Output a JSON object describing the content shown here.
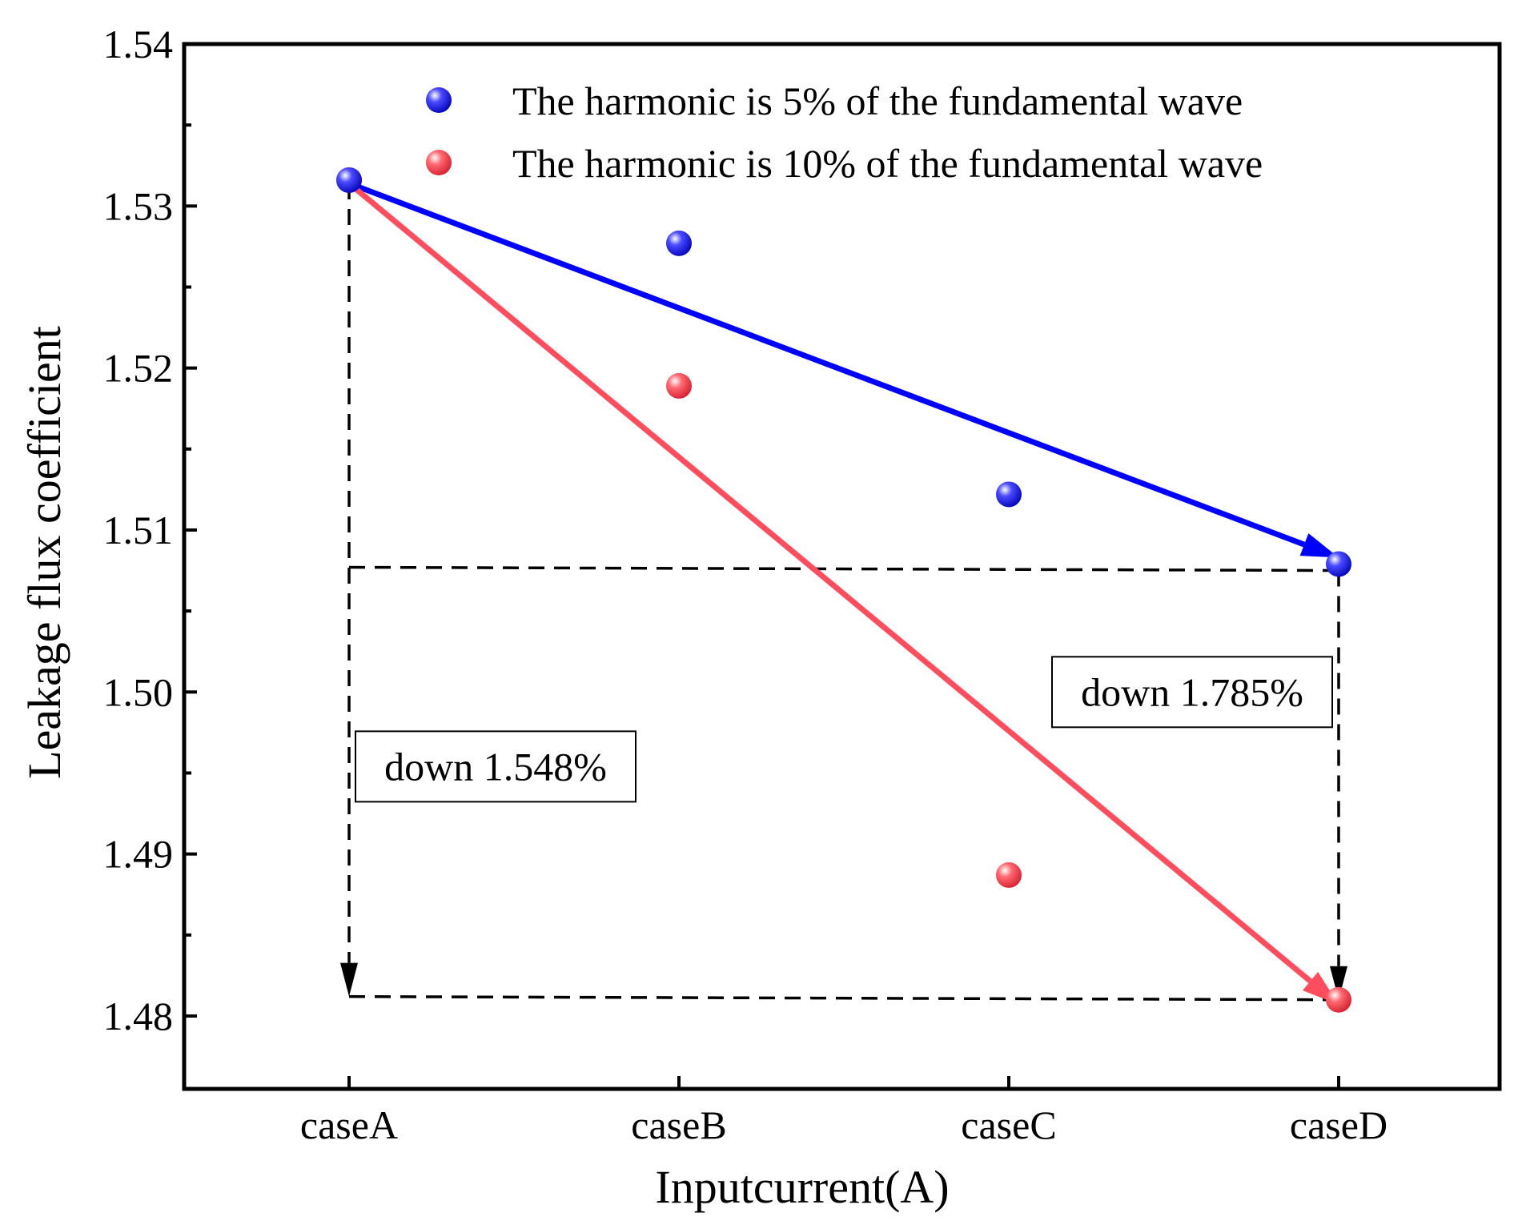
{
  "chart_data": {
    "type": "scatter",
    "title": "",
    "xlabel": "Inputcurrent(A)",
    "ylabel": "Leakage flux coefficient",
    "categories": [
      "caseA",
      "caseB",
      "caseC",
      "caseD"
    ],
    "ylim": [
      1.4755,
      1.54
    ],
    "yticks": [
      "1.48",
      "1.49",
      "1.50",
      "1.51",
      "1.52",
      "1.53",
      "1.54"
    ],
    "ytick_values": [
      1.48,
      1.49,
      1.5,
      1.51,
      1.52,
      1.53,
      1.54
    ],
    "grid": false,
    "legend_position": "top-right",
    "series": [
      {
        "name": "The harmonic is 5% of the fundamental wave",
        "color": "#1010e8",
        "values": [
          1.5316,
          1.5277,
          1.5122,
          1.5079
        ]
      },
      {
        "name": "The harmonic is 10% of the fundamental wave",
        "color": "#f04050",
        "values": [
          1.5316,
          1.5189,
          1.4887,
          1.481
        ]
      }
    ],
    "trend_arrows": [
      {
        "series": "The harmonic is 5% of the fundamental wave",
        "color": "#0000ff",
        "from": [
          "caseA",
          1.5314
        ],
        "to": [
          "caseD",
          1.5083
        ]
      },
      {
        "series": "The harmonic is 10% of the fundamental wave",
        "color": "#ff4d5e",
        "from": [
          "caseA",
          1.5314
        ],
        "to": [
          "caseD",
          1.4807
        ]
      }
    ],
    "reference_lines": [
      {
        "from": [
          "caseA",
          1.5077
        ],
        "to": [
          "caseD",
          1.5075
        ]
      },
      {
        "from": [
          "caseA",
          1.4812
        ],
        "to": [
          "caseD",
          1.481
        ]
      }
    ],
    "annotations": [
      {
        "text": "down 1.548%",
        "category": "caseA",
        "arrow_from": 1.5314,
        "arrow_to": 1.4812
      },
      {
        "text": "down 1.785%",
        "category": "caseD",
        "arrow_from": 1.5075,
        "arrow_to": 1.481
      }
    ]
  }
}
